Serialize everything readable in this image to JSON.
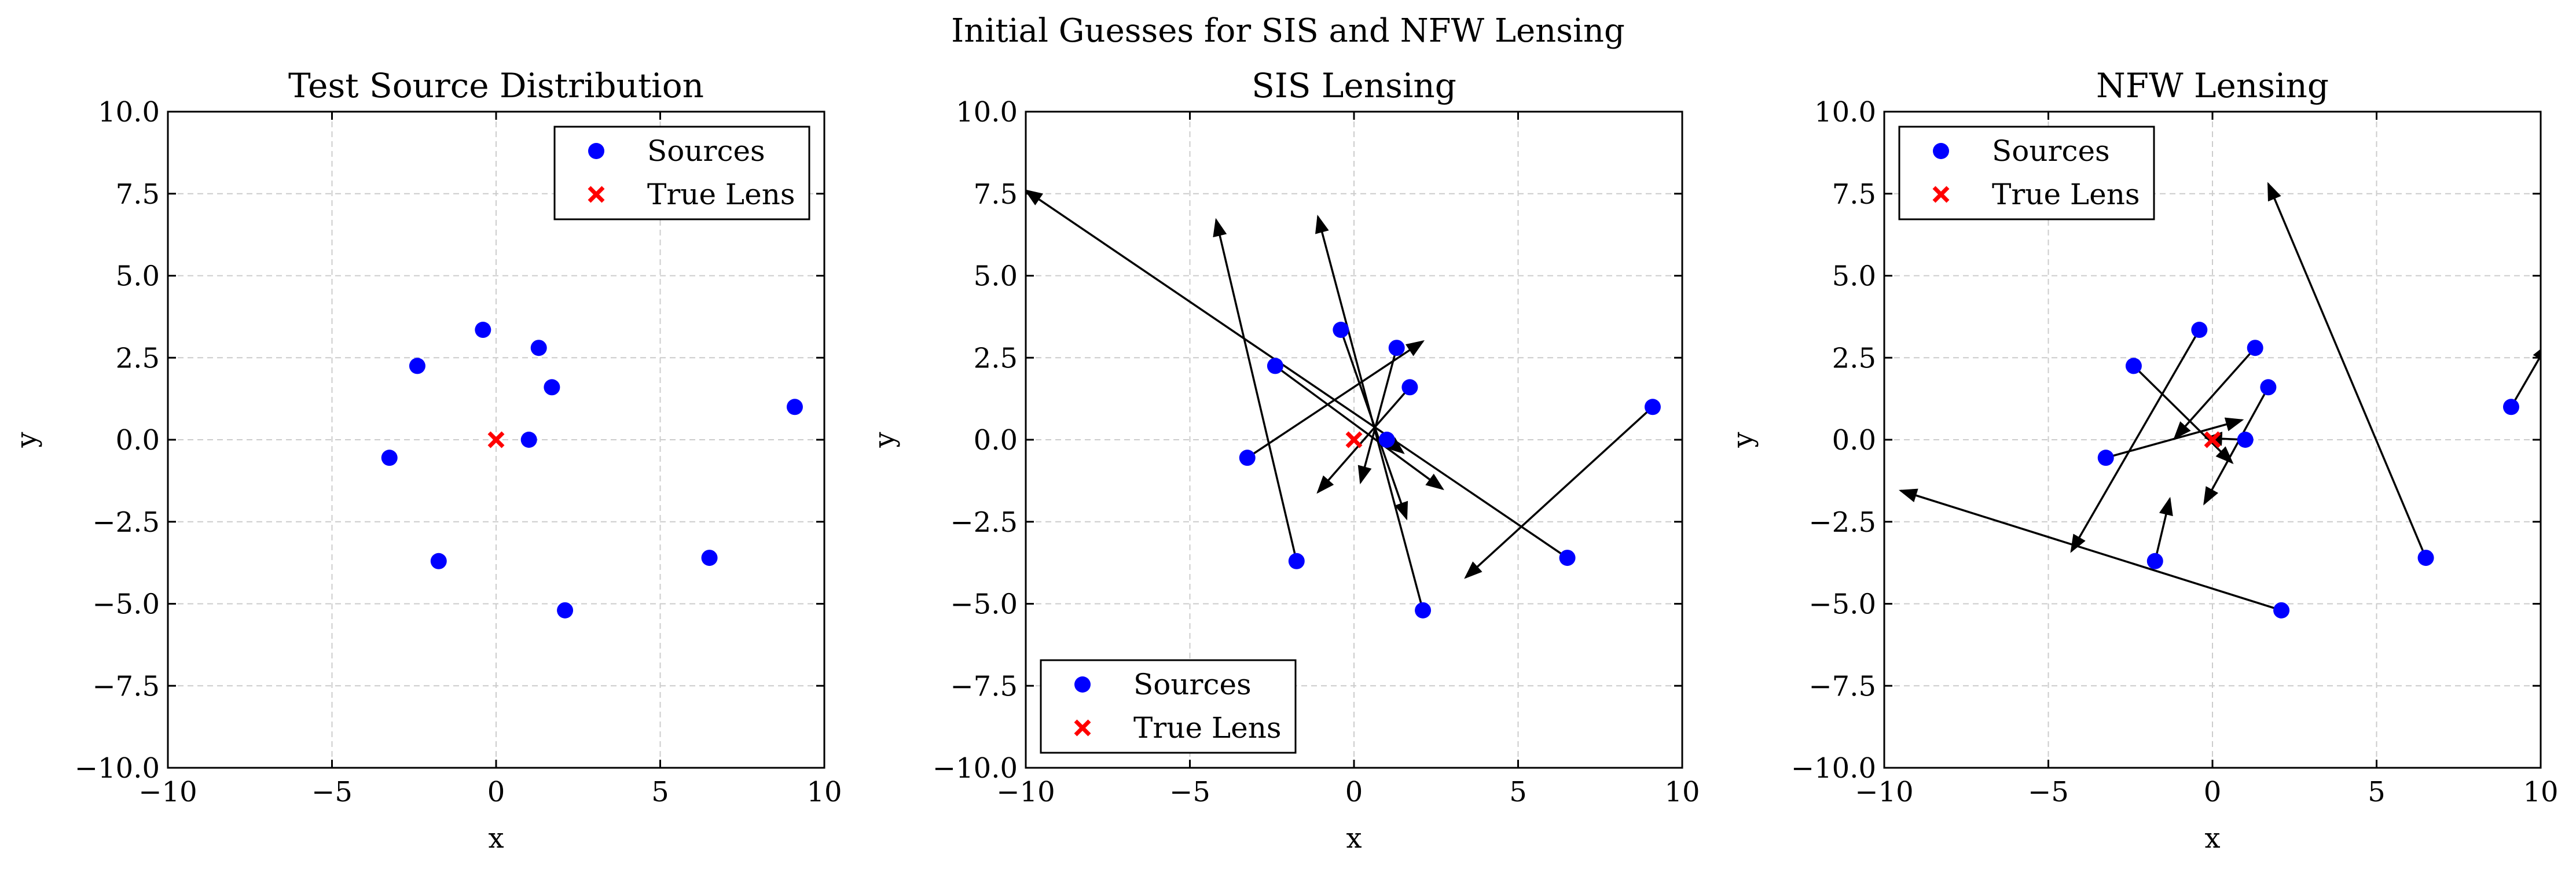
{
  "figure": {
    "suptitle": "Initial Guesses for SIS and NFW Lensing"
  },
  "colors": {
    "sources": "#0000ff",
    "true_lens": "#ff0000",
    "arrow": "#000000",
    "grid": "#cccccc"
  },
  "chart_data": [
    {
      "type": "scatter",
      "title": "Test Source Distribution",
      "xlabel": "x",
      "ylabel": "y",
      "xlim": [
        -10,
        10
      ],
      "ylim": [
        -10,
        10
      ],
      "xticks": [
        -10,
        -5,
        0,
        5,
        10
      ],
      "yticks": [
        -10.0,
        -7.5,
        -5.0,
        -2.5,
        0.0,
        2.5,
        5.0,
        7.5,
        10.0
      ],
      "xtick_labels": [
        "−10",
        "−5",
        "0",
        "5",
        "10"
      ],
      "ytick_labels": [
        "−10.0",
        "−7.5",
        "−5.0",
        "−2.5",
        "0.0",
        "2.5",
        "5.0",
        "7.5",
        "10.0"
      ],
      "grid": true,
      "legend_position": "top-right",
      "legend": [
        "Sources",
        "True Lens"
      ],
      "sources": [
        [
          -3.25,
          -0.55
        ],
        [
          -2.4,
          2.25
        ],
        [
          -1.75,
          -3.7
        ],
        [
          -0.4,
          3.35
        ],
        [
          1.0,
          0.0
        ],
        [
          1.3,
          2.8
        ],
        [
          1.7,
          1.6
        ],
        [
          2.1,
          -5.2
        ],
        [
          6.5,
          -3.6
        ],
        [
          9.1,
          1.0
        ]
      ],
      "true_lens": [
        0,
        0
      ],
      "arrows": []
    },
    {
      "type": "scatter",
      "title": "SIS Lensing",
      "xlabel": "x",
      "ylabel": "y",
      "xlim": [
        -10,
        10
      ],
      "ylim": [
        -10,
        10
      ],
      "xticks": [
        -10,
        -5,
        0,
        5,
        10
      ],
      "yticks": [
        -10.0,
        -7.5,
        -5.0,
        -2.5,
        0.0,
        2.5,
        5.0,
        7.5,
        10.0
      ],
      "xtick_labels": [
        "−10",
        "−5",
        "0",
        "5",
        "10"
      ],
      "ytick_labels": [
        "−10.0",
        "−7.5",
        "−5.0",
        "−2.5",
        "0.0",
        "2.5",
        "5.0",
        "7.5",
        "10.0"
      ],
      "grid": true,
      "legend_position": "bottom-left",
      "legend": [
        "Sources",
        "True Lens"
      ],
      "sources": [
        [
          -3.25,
          -0.55
        ],
        [
          -2.4,
          2.25
        ],
        [
          -1.75,
          -3.7
        ],
        [
          -0.4,
          3.35
        ],
        [
          1.0,
          0.0
        ],
        [
          1.3,
          2.8
        ],
        [
          1.7,
          1.6
        ],
        [
          2.1,
          -5.2
        ],
        [
          6.5,
          -3.6
        ],
        [
          9.1,
          1.0
        ]
      ],
      "true_lens": [
        0,
        0
      ],
      "arrows": [
        [
          [
            6.5,
            -3.6
          ],
          [
            -10.0,
            7.6
          ]
        ],
        [
          [
            -3.25,
            -0.55
          ],
          [
            2.1,
            3.0
          ]
        ],
        [
          [
            -2.4,
            2.25
          ],
          [
            2.7,
            -1.5
          ]
        ],
        [
          [
            -1.75,
            -3.7
          ],
          [
            -4.2,
            6.7
          ]
        ],
        [
          [
            2.1,
            -5.2
          ],
          [
            -1.1,
            6.8
          ]
        ],
        [
          [
            -0.4,
            3.35
          ],
          [
            1.6,
            -2.4
          ]
        ],
        [
          [
            1.0,
            0.0
          ],
          [
            1.5,
            -0.4
          ]
        ],
        [
          [
            1.3,
            2.8
          ],
          [
            0.2,
            -1.3
          ]
        ],
        [
          [
            1.7,
            1.6
          ],
          [
            -1.1,
            -1.6
          ]
        ],
        [
          [
            9.1,
            1.0
          ],
          [
            3.4,
            -4.2
          ]
        ]
      ]
    },
    {
      "type": "scatter",
      "title": "NFW Lensing",
      "xlabel": "x",
      "ylabel": "y",
      "xlim": [
        -10,
        10
      ],
      "ylim": [
        -10,
        10
      ],
      "xticks": [
        -10,
        -5,
        0,
        5,
        10
      ],
      "yticks": [
        -10.0,
        -7.5,
        -5.0,
        -2.5,
        0.0,
        2.5,
        5.0,
        7.5,
        10.0
      ],
      "xtick_labels": [
        "−10",
        "−5",
        "0",
        "5",
        "10"
      ],
      "ytick_labels": [
        "−10.0",
        "−7.5",
        "−5.0",
        "−2.5",
        "0.0",
        "2.5",
        "5.0",
        "7.5",
        "10.0"
      ],
      "grid": true,
      "legend_position": "top-left",
      "legend": [
        "Sources",
        "True Lens"
      ],
      "sources": [
        [
          -3.25,
          -0.55
        ],
        [
          -2.4,
          2.25
        ],
        [
          -1.75,
          -3.7
        ],
        [
          -0.4,
          3.35
        ],
        [
          1.0,
          0.0
        ],
        [
          1.3,
          2.8
        ],
        [
          1.7,
          1.6
        ],
        [
          2.1,
          -5.2
        ],
        [
          6.5,
          -3.6
        ],
        [
          9.1,
          1.0
        ]
      ],
      "true_lens": [
        0,
        0
      ],
      "arrows": [
        [
          [
            6.5,
            -3.6
          ],
          [
            1.7,
            7.8
          ]
        ],
        [
          [
            2.1,
            -5.2
          ],
          [
            -9.5,
            -1.55
          ]
        ],
        [
          [
            -0.4,
            3.35
          ],
          [
            -4.3,
            -3.4
          ]
        ],
        [
          [
            -3.25,
            -0.55
          ],
          [
            0.9,
            0.6
          ]
        ],
        [
          [
            -2.4,
            2.25
          ],
          [
            0.6,
            -0.7
          ]
        ],
        [
          [
            1.3,
            2.8
          ],
          [
            -1.15,
            0.05
          ]
        ],
        [
          [
            1.7,
            1.6
          ],
          [
            -0.25,
            -1.95
          ]
        ],
        [
          [
            -1.75,
            -3.7
          ],
          [
            -1.3,
            -1.8
          ]
        ],
        [
          [
            1.0,
            0.0
          ],
          [
            -0.2,
            0.05
          ]
        ],
        [
          [
            9.1,
            1.0
          ],
          [
            10.2,
            2.9
          ]
        ]
      ]
    }
  ]
}
